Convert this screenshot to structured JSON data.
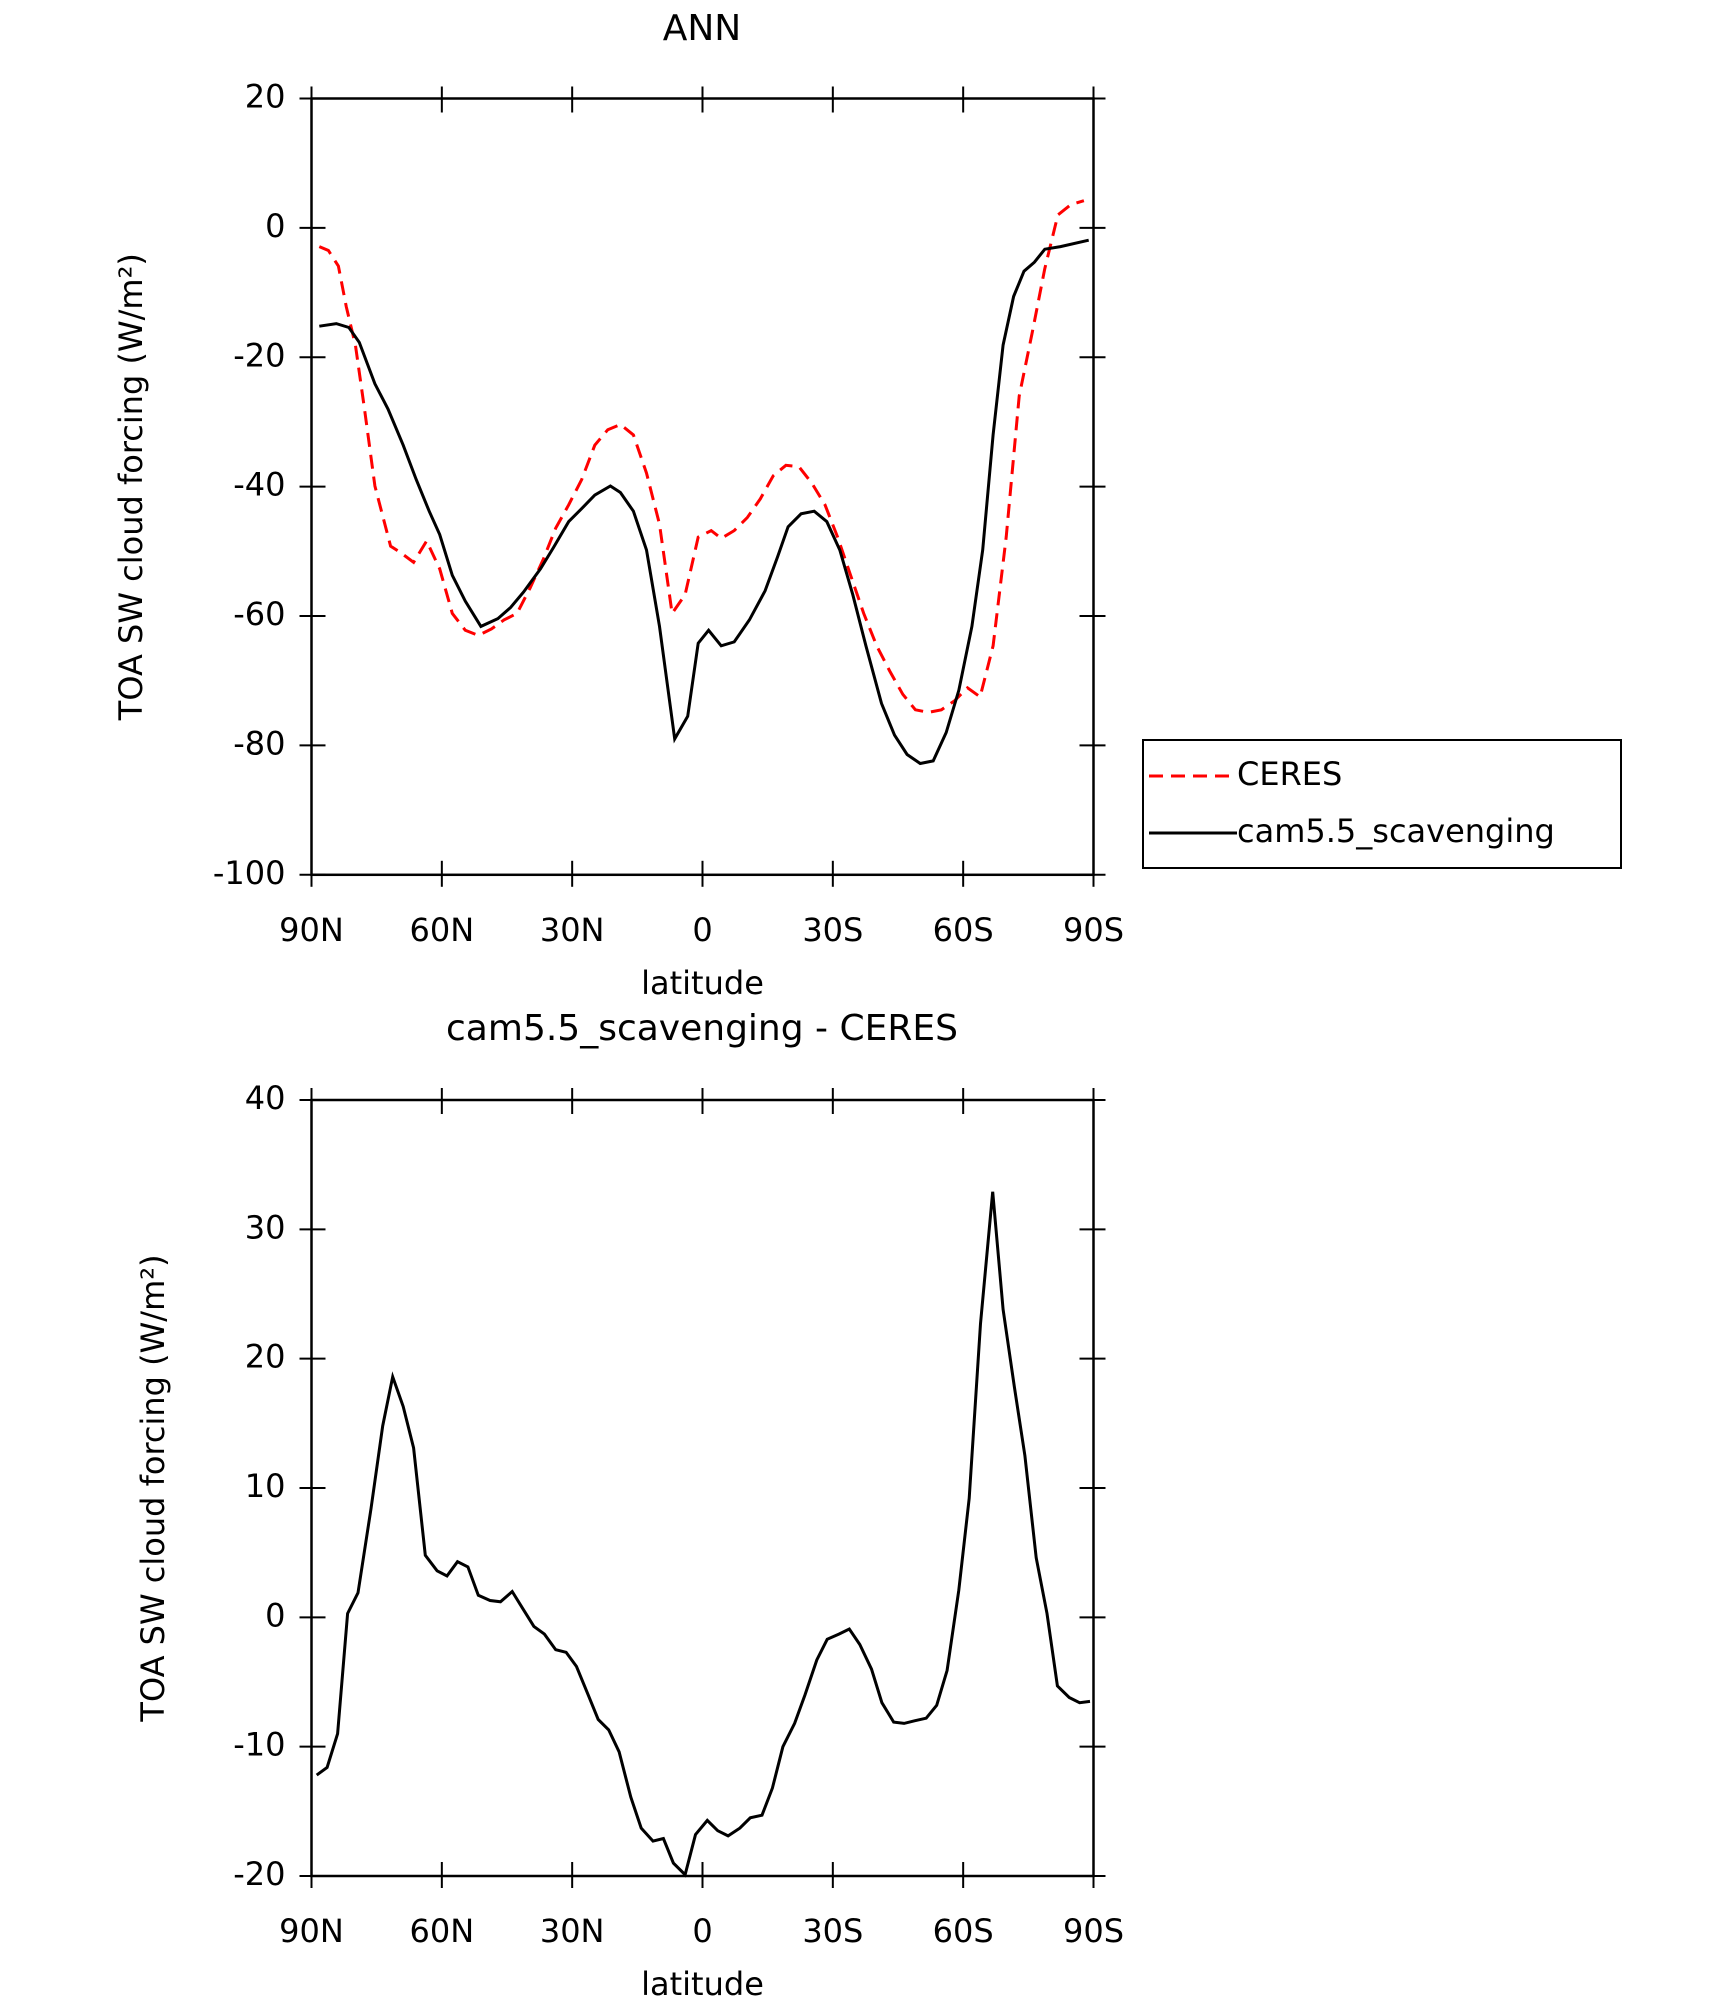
{
  "chart_data": [
    {
      "type": "line",
      "title": "ANN",
      "xlabel": "latitude",
      "ylabel": "TOA SW cloud forcing (W/m²)",
      "xlim": [
        90,
        -90
      ],
      "xticks": [
        {
          "value": 90,
          "label": "90N"
        },
        {
          "value": 60,
          "label": "60N"
        },
        {
          "value": 30,
          "label": "30N"
        },
        0,
        {
          "value": -30,
          "label": "30S"
        },
        {
          "value": -60,
          "label": "60S"
        },
        {
          "value": -90,
          "label": "90S"
        }
      ],
      "ylim": [
        -100,
        20
      ],
      "yticks": [
        -100,
        -80,
        -60,
        -40,
        -20,
        0,
        20
      ],
      "legend": "right",
      "series": [
        {
          "name": "CERES",
          "color": "#ff0000",
          "style": "dashed",
          "x": [
            88.2,
            86.1,
            83.8,
            82,
            79.9,
            77.8,
            75.4,
            71.8,
            69.5,
            66.5,
            63.5,
            60.5,
            57.6,
            54.6,
            51.6,
            48.6,
            45.7,
            42.7,
            39.7,
            36.7,
            33.8,
            30.8,
            27.8,
            24.8,
            21.8,
            18.9,
            15.9,
            12.9,
            9.9,
            7,
            4,
            1,
            -2,
            -4.3,
            -7.3,
            -10.3,
            -13.3,
            -16.3,
            -19.2,
            -22.2,
            -25.2,
            -28.2,
            -31.1,
            -34.1,
            -37.1,
            -40.1,
            -43.1,
            -46.1,
            -49,
            -52,
            -55,
            -58,
            -61,
            -63.9,
            -66.9,
            -69.9,
            -72.9,
            -75.9,
            -78.8,
            -81.8,
            -84.8,
            -87.8
          ],
          "values": [
            -2.9,
            -3.5,
            -5.9,
            -12.2,
            -18.1,
            -28,
            -39.9,
            -49.2,
            -50.2,
            -51.7,
            -48.4,
            -52.7,
            -59.6,
            -62.2,
            -63,
            -62,
            -60.6,
            -59.6,
            -55.7,
            -51.3,
            -46.4,
            -42.8,
            -38.9,
            -33.6,
            -31.2,
            -30.4,
            -32,
            -37.9,
            -45.8,
            -59.6,
            -56.7,
            -47.8,
            -46.8,
            -48,
            -46.8,
            -44.8,
            -41.9,
            -38.3,
            -36.7,
            -36.9,
            -39.5,
            -42.8,
            -47.8,
            -53.7,
            -59.6,
            -64.6,
            -68.5,
            -72.1,
            -74.5,
            -74.9,
            -74.5,
            -73.1,
            -71.1,
            -72.5,
            -64.6,
            -47.8,
            -26,
            -16.2,
            -6.3,
            2,
            3.6,
            4.2
          ]
        },
        {
          "name": "cam5.5_scavenging",
          "color": "#000000",
          "style": "solid",
          "x": [
            88.2,
            84.3,
            81.4,
            79,
            75.4,
            72.4,
            68.9,
            65.9,
            62.9,
            60.5,
            57.6,
            54.6,
            51,
            47.1,
            44.2,
            41.2,
            37.3,
            34.3,
            30.8,
            27.8,
            24.8,
            21.2,
            18.9,
            15.9,
            12.9,
            9.9,
            6.4,
            3.4,
            1,
            -1.4,
            -4.3,
            -7.3,
            -10.8,
            -14.4,
            -17.3,
            -19.7,
            -22.7,
            -25.7,
            -28.6,
            -31.6,
            -34.6,
            -37.6,
            -41.2,
            -44.2,
            -47.1,
            -50.1,
            -53.1,
            -56.1,
            -59,
            -62,
            -64.5,
            -66.9,
            -69.2,
            -71.6,
            -74,
            -76.4,
            -78.8,
            -82.4,
            -88.9
          ],
          "values": [
            -15.2,
            -14.8,
            -15.4,
            -17.7,
            -24.1,
            -28,
            -33.6,
            -38.9,
            -43.8,
            -47.4,
            -53.7,
            -57.7,
            -61.6,
            -60.4,
            -58.7,
            -56.3,
            -52.7,
            -49.4,
            -45.4,
            -43.4,
            -41.3,
            -39.9,
            -40.9,
            -43.8,
            -49.8,
            -61.6,
            -79,
            -75.5,
            -64.2,
            -62.2,
            -64.6,
            -64,
            -60.6,
            -56.1,
            -50.8,
            -46.2,
            -44.2,
            -43.8,
            -45.4,
            -49.8,
            -56.7,
            -64.6,
            -73.5,
            -78.4,
            -81.4,
            -82.8,
            -82.4,
            -78,
            -71.5,
            -61.6,
            -49.8,
            -32,
            -18.1,
            -10.6,
            -6.7,
            -5.3,
            -3.3,
            -2.9,
            -1.9
          ]
        }
      ]
    },
    {
      "type": "line",
      "title": "cam5.5_scavenging - CERES",
      "xlabel": "latitude",
      "ylabel": "TOA SW cloud forcing (W/m²)",
      "xlim": [
        90,
        -90
      ],
      "xticks": [
        {
          "value": 90,
          "label": "90N"
        },
        {
          "value": 60,
          "label": "60N"
        },
        {
          "value": 30,
          "label": "30N"
        },
        0,
        {
          "value": -30,
          "label": "30S"
        },
        {
          "value": -60,
          "label": "60S"
        },
        {
          "value": -90,
          "label": "90S"
        }
      ],
      "ylim": [
        -20,
        40
      ],
      "yticks": [
        -20,
        -10,
        0,
        10,
        20,
        30,
        40
      ],
      "series": [
        {
          "color": "#000000",
          "style": "solid",
          "x": [
            88.8,
            86.4,
            84,
            81.7,
            79.3,
            76.3,
            73.6,
            71.3,
            68.9,
            66.5,
            63.8,
            61.1,
            58.8,
            56.4,
            54,
            51.6,
            48.9,
            46.5,
            43.8,
            41.4,
            38.8,
            36.4,
            33.8,
            31.4,
            29,
            26.3,
            24,
            21.6,
            19.2,
            16.5,
            14.1,
            11.4,
            9,
            6.7,
            4,
            1.6,
            -1.1,
            -3.5,
            -5.9,
            -8.6,
            -11,
            -13.7,
            -16.1,
            -18.5,
            -21.2,
            -23.6,
            -26.3,
            -28.7,
            -31.4,
            -33.8,
            -36.2,
            -38.9,
            -41.3,
            -44,
            -46.4,
            -48.8,
            -51.5,
            -53.9,
            -56.3,
            -59,
            -61.4,
            -64,
            -66.8,
            -69.2,
            -71.8,
            -74.2,
            -76.8,
            -79.3,
            -81.7,
            -84.4,
            -86.8,
            -89.2
          ],
          "values": [
            -12.2,
            -11.6,
            -9,
            0.3,
            1.9,
            8.4,
            14.8,
            18.6,
            16.3,
            13.1,
            4.8,
            3.6,
            3.2,
            4.3,
            3.9,
            1.7,
            1.3,
            1.2,
            2,
            0.7,
            -0.7,
            -1.3,
            -2.5,
            -2.7,
            -3.8,
            -6,
            -7.9,
            -8.7,
            -10.4,
            -13.9,
            -16.3,
            -17.3,
            -17.1,
            -19,
            -19.9,
            -16.8,
            -15.7,
            -16.5,
            -16.9,
            -16.3,
            -15.5,
            -15.3,
            -13.2,
            -10,
            -8.2,
            -6,
            -3.3,
            -1.7,
            -1.3,
            -0.9,
            -2.1,
            -4,
            -6.6,
            -8.1,
            -8.2,
            -8,
            -7.8,
            -6.8,
            -4.1,
            2.1,
            9.2,
            22.7,
            32.9,
            23.8,
            17.8,
            12.5,
            4.6,
            0.3,
            -5.3,
            -6.2,
            -6.6,
            -6.5
          ]
        }
      ]
    }
  ]
}
